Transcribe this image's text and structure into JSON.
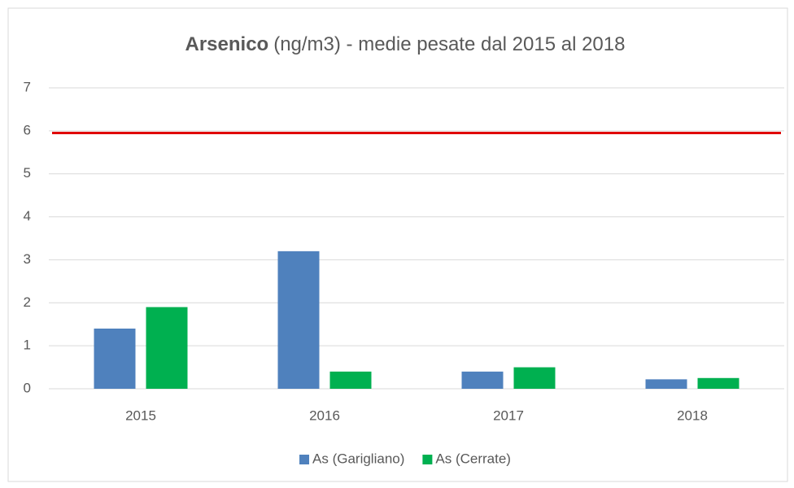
{
  "chart_data": {
    "type": "bar",
    "title": [
      "Arsenico",
      "(ng/m3) - medie pesate dal 2015 al 2018"
    ],
    "categories": [
      "2015",
      "2016",
      "2017",
      "2018"
    ],
    "series": [
      {
        "name": "As (Garigliano)",
        "color": "#4f81bd",
        "values": [
          1.4,
          3.2,
          0.4,
          0.22
        ]
      },
      {
        "name": "As (Cerrate)",
        "color": "#00b050",
        "values": [
          1.9,
          0.4,
          0.5,
          0.25
        ]
      }
    ],
    "reference_line": {
      "value": 5.95,
      "color": "#e00000"
    },
    "ylim": [
      0,
      7
    ],
    "yticks": [
      0,
      1,
      2,
      3,
      4,
      5,
      6,
      7
    ],
    "grid": true,
    "legend": "bottom"
  }
}
